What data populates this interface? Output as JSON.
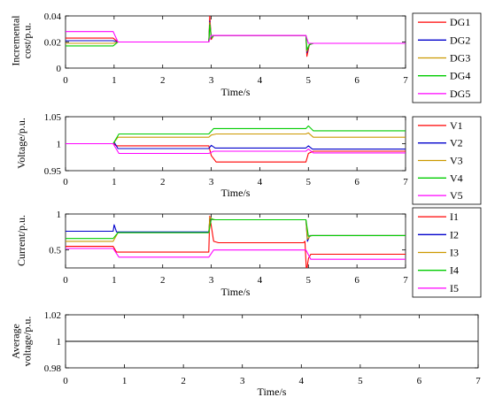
{
  "chart_data": [
    {
      "type": "line",
      "ylabel_lines": [
        "Incremental",
        "cost/p.u."
      ],
      "xlabel": "Time/s",
      "xlim": [
        0,
        7
      ],
      "ylim": [
        0,
        0.04
      ],
      "x_ticks": [
        "0",
        "1",
        "2",
        "3",
        "4",
        "5",
        "6",
        "7"
      ],
      "y_ticks": [
        "0",
        "0.02",
        "0.04"
      ],
      "legend_position": "right",
      "series": [
        {
          "name": "DG1",
          "color": "#ff0000",
          "points": [
            [
              0,
              0.023
            ],
            [
              0.98,
              0.023
            ],
            [
              1.08,
              0.02
            ],
            [
              2.95,
              0.02
            ],
            [
              2.97,
              0.04
            ],
            [
              3.0,
              0.022
            ],
            [
              3.05,
              0.025
            ],
            [
              4.95,
              0.025
            ],
            [
              4.97,
              0.009
            ],
            [
              5.02,
              0.018
            ],
            [
              5.1,
              0.019
            ],
            [
              7,
              0.019
            ]
          ]
        },
        {
          "name": "DG2",
          "color": "#0000cc",
          "points": [
            [
              0,
              0.021
            ],
            [
              0.98,
              0.021
            ],
            [
              1.08,
              0.02
            ],
            [
              2.95,
              0.02
            ],
            [
              2.97,
              0.036
            ],
            [
              3.0,
              0.023
            ],
            [
              3.05,
              0.025
            ],
            [
              4.95,
              0.025
            ],
            [
              4.97,
              0.012
            ],
            [
              5.02,
              0.018
            ],
            [
              5.1,
              0.019
            ],
            [
              7,
              0.019
            ]
          ]
        },
        {
          "name": "DG3",
          "color": "#cc9900",
          "points": [
            [
              0,
              0.019
            ],
            [
              0.98,
              0.019
            ],
            [
              1.08,
              0.02
            ],
            [
              2.95,
              0.02
            ],
            [
              2.97,
              0.035
            ],
            [
              3.0,
              0.023
            ],
            [
              3.05,
              0.025
            ],
            [
              4.95,
              0.025
            ],
            [
              4.97,
              0.013
            ],
            [
              5.02,
              0.018
            ],
            [
              5.1,
              0.019
            ],
            [
              7,
              0.019
            ]
          ]
        },
        {
          "name": "DG4",
          "color": "#00cc00",
          "points": [
            [
              0,
              0.017
            ],
            [
              0.98,
              0.017
            ],
            [
              1.08,
              0.02
            ],
            [
              2.95,
              0.02
            ],
            [
              2.97,
              0.033
            ],
            [
              3.0,
              0.023
            ],
            [
              3.05,
              0.025
            ],
            [
              4.95,
              0.025
            ],
            [
              4.97,
              0.014
            ],
            [
              5.02,
              0.018
            ],
            [
              5.1,
              0.019
            ],
            [
              7,
              0.019
            ]
          ]
        },
        {
          "name": "DG5",
          "color": "#ff00ff",
          "points": [
            [
              0,
              0.028
            ],
            [
              0.98,
              0.028
            ],
            [
              1.08,
              0.02
            ],
            [
              2.95,
              0.02
            ],
            [
              3.0,
              0.025
            ],
            [
              4.95,
              0.025
            ],
            [
              5.0,
              0.019
            ],
            [
              7,
              0.019
            ]
          ]
        }
      ]
    },
    {
      "type": "line",
      "ylabel_lines": [
        "Voltage/p.u."
      ],
      "xlabel": "Time/s",
      "xlim": [
        0,
        7
      ],
      "ylim": [
        0.95,
        1.05
      ],
      "x_ticks": [
        "0",
        "1",
        "2",
        "3",
        "4",
        "5",
        "6",
        "7"
      ],
      "y_ticks": [
        "0.95",
        "1",
        "1.05"
      ],
      "legend_position": "right",
      "series": [
        {
          "name": "V1",
          "color": "#ff0000",
          "points": [
            [
              0,
              1.0
            ],
            [
              0.98,
              1.0
            ],
            [
              1.05,
              0.996
            ],
            [
              2.95,
              0.996
            ],
            [
              3.0,
              0.978
            ],
            [
              3.1,
              0.966
            ],
            [
              4.95,
              0.966
            ],
            [
              5.0,
              0.982
            ],
            [
              5.1,
              0.986
            ],
            [
              7,
              0.986
            ]
          ]
        },
        {
          "name": "V2",
          "color": "#0000cc",
          "points": [
            [
              0,
              1.0
            ],
            [
              0.98,
              1.0
            ],
            [
              1.0,
              1.003
            ],
            [
              1.08,
              0.991
            ],
            [
              2.95,
              0.991
            ],
            [
              3.0,
              0.997
            ],
            [
              3.08,
              0.992
            ],
            [
              4.95,
              0.992
            ],
            [
              5.0,
              0.996
            ],
            [
              5.08,
              0.99
            ],
            [
              7,
              0.99
            ]
          ]
        },
        {
          "name": "V3",
          "color": "#cc9900",
          "points": [
            [
              0,
              1.0
            ],
            [
              0.98,
              1.0
            ],
            [
              1.08,
              1.012
            ],
            [
              2.95,
              1.012
            ],
            [
              3.0,
              1.016
            ],
            [
              3.1,
              1.018
            ],
            [
              4.95,
              1.018
            ],
            [
              5.0,
              1.02
            ],
            [
              5.1,
              1.012
            ],
            [
              7,
              1.012
            ]
          ]
        },
        {
          "name": "V4",
          "color": "#00cc00",
          "points": [
            [
              0,
              1.0
            ],
            [
              0.98,
              1.0
            ],
            [
              1.1,
              1.018
            ],
            [
              2.95,
              1.018
            ],
            [
              3.05,
              1.028
            ],
            [
              4.95,
              1.028
            ],
            [
              5.0,
              1.033
            ],
            [
              5.1,
              1.024
            ],
            [
              7,
              1.024
            ]
          ]
        },
        {
          "name": "V5",
          "color": "#ff00ff",
          "points": [
            [
              0,
              1.0
            ],
            [
              0.98,
              1.0
            ],
            [
              1.1,
              0.982
            ],
            [
              2.95,
              0.982
            ],
            [
              3.05,
              0.986
            ],
            [
              4.95,
              0.986
            ],
            [
              5.0,
              0.99
            ],
            [
              5.1,
              0.983
            ],
            [
              7,
              0.983
            ]
          ]
        }
      ]
    },
    {
      "type": "line",
      "ylabel_lines": [
        "Current/p.u."
      ],
      "xlabel": "Time/s",
      "xlim": [
        0,
        7
      ],
      "ylim": [
        0.25,
        1.0
      ],
      "x_ticks": [
        "0",
        "1",
        "2",
        "3",
        "4",
        "5",
        "6",
        "7"
      ],
      "y_ticks": [
        "0.5",
        "1"
      ],
      "legend_position": "right",
      "series": [
        {
          "name": "I1",
          "color": "#ff0000",
          "points": [
            [
              0,
              0.55
            ],
            [
              0.98,
              0.55
            ],
            [
              1.05,
              0.47
            ],
            [
              2.95,
              0.47
            ],
            [
              2.97,
              0.97
            ],
            [
              3.05,
              0.62
            ],
            [
              3.15,
              0.6
            ],
            [
              4.9,
              0.6
            ],
            [
              4.93,
              0.62
            ],
            [
              4.96,
              0.2
            ],
            [
              5.0,
              0.38
            ],
            [
              5.05,
              0.44
            ],
            [
              7,
              0.44
            ]
          ]
        },
        {
          "name": "I2",
          "color": "#0000cc",
          "points": [
            [
              0,
              0.76
            ],
            [
              0.98,
              0.76
            ],
            [
              1.0,
              0.85
            ],
            [
              1.05,
              0.75
            ],
            [
              2.95,
              0.75
            ],
            [
              2.97,
              0.93
            ],
            [
              3.05,
              0.92
            ],
            [
              4.95,
              0.92
            ],
            [
              4.98,
              0.62
            ],
            [
              5.03,
              0.7
            ],
            [
              7,
              0.7
            ]
          ]
        },
        {
          "name": "I3",
          "color": "#cc9900",
          "points": [
            [
              0,
              0.62
            ],
            [
              0.98,
              0.62
            ],
            [
              1.08,
              0.74
            ],
            [
              2.95,
              0.74
            ],
            [
              2.97,
              0.95
            ],
            [
              3.05,
              0.92
            ],
            [
              4.95,
              0.92
            ],
            [
              4.98,
              0.65
            ],
            [
              5.05,
              0.7
            ],
            [
              7,
              0.7
            ]
          ]
        },
        {
          "name": "I4",
          "color": "#00cc00",
          "points": [
            [
              0,
              0.66
            ],
            [
              0.98,
              0.66
            ],
            [
              1.08,
              0.74
            ],
            [
              2.95,
              0.74
            ],
            [
              3.0,
              0.93
            ],
            [
              3.08,
              0.92
            ],
            [
              4.95,
              0.92
            ],
            [
              5.0,
              0.69
            ],
            [
              5.08,
              0.7
            ],
            [
              7,
              0.7
            ]
          ]
        },
        {
          "name": "I5",
          "color": "#ff00ff",
          "points": [
            [
              0,
              0.52
            ],
            [
              0.98,
              0.52
            ],
            [
              1.1,
              0.4
            ],
            [
              2.95,
              0.4
            ],
            [
              3.05,
              0.5
            ],
            [
              4.95,
              0.5
            ],
            [
              5.05,
              0.37
            ],
            [
              7,
              0.37
            ]
          ]
        }
      ]
    },
    {
      "type": "line",
      "ylabel_lines": [
        "Average",
        "voltage/p.u."
      ],
      "xlabel": "Time/s",
      "xlim": [
        0,
        7
      ],
      "ylim": [
        0.98,
        1.02
      ],
      "x_ticks": [
        "0",
        "1",
        "2",
        "3",
        "4",
        "5",
        "6",
        "7"
      ],
      "y_ticks": [
        "0.98",
        "1",
        "1.02"
      ],
      "series": [
        {
          "color": "#000000",
          "points": [
            [
              0,
              1.0
            ],
            [
              7,
              1.0
            ]
          ]
        }
      ]
    }
  ]
}
